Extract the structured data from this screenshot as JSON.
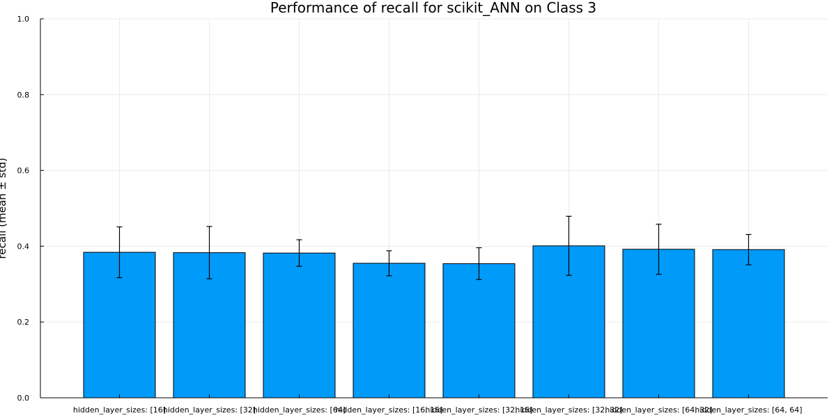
{
  "chart_data": {
    "type": "bar",
    "title": "Performance of recall for scikit_ANN on Class 3",
    "xlabel": "",
    "ylabel": "recall (mean ± std)",
    "ylim": [
      0,
      1
    ],
    "yticks": [
      "0.0",
      "0.2",
      "0.4",
      "0.6",
      "0.8",
      "1.0"
    ],
    "grid": true,
    "legend": "none",
    "categories": [
      "hidden_layer_sizes: [16]",
      "hidden_layer_sizes: [32]",
      "hidden_layer_sizes: [64]",
      "hidden_layer_sizes: [16, 16]",
      "hidden_layer_sizes: [32, 16]",
      "hidden_layer_sizes: [32, 32]",
      "hidden_layer_sizes: [64, 32]",
      "hidden_layer_sizes: [64, 64]"
    ],
    "values": [
      0.384,
      0.383,
      0.382,
      0.355,
      0.354,
      0.401,
      0.392,
      0.391
    ],
    "errors": [
      0.067,
      0.069,
      0.035,
      0.033,
      0.042,
      0.078,
      0.066,
      0.04
    ],
    "colors": {
      "bar": "#009AF9",
      "edge": "#000000"
    }
  }
}
